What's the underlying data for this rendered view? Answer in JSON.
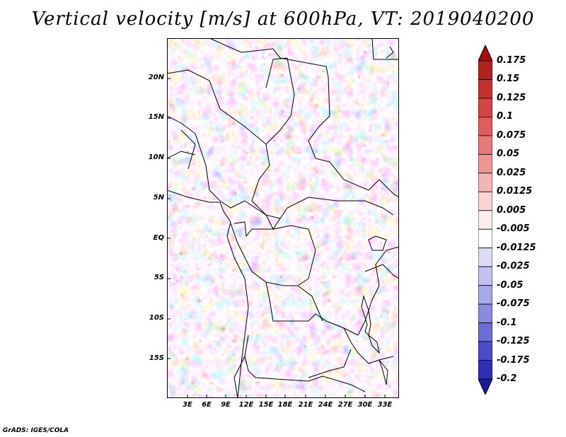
{
  "title": "Vertical velocity [m/s] at 600hPa, VT: 2019040200",
  "footer": "GrADS: IGES/COLA",
  "map": {
    "lat_ticks": [
      "20N",
      "15N",
      "10N",
      "5N",
      "EQ",
      "5S",
      "10S",
      "15S"
    ],
    "lon_ticks": [
      "3E",
      "6E",
      "9E",
      "12E",
      "15E",
      "18E",
      "21E",
      "24E",
      "27E",
      "30E",
      "33E"
    ]
  },
  "colorbar": {
    "labels": [
      "0.175",
      "0.15",
      "0.125",
      "0.1",
      "0.075",
      "0.05",
      "0.025",
      "0.0125",
      "0.005",
      "-0.005",
      "-0.0125",
      "-0.025",
      "-0.05",
      "-0.075",
      "-0.1",
      "-0.125",
      "-0.175",
      "-0.2"
    ],
    "colors": [
      "#a01010",
      "#b42020",
      "#c83030",
      "#d64444",
      "#e05c5c",
      "#e87878",
      "#f09494",
      "#f6b4b4",
      "#fad4d4",
      "#fcecec",
      "#ffffff",
      "#dcdcf6",
      "#c2c2f2",
      "#a8a8ec",
      "#8a8ae2",
      "#6c6cd8",
      "#4c4cc8",
      "#2e2eb6",
      "#1a1aa0"
    ]
  }
}
